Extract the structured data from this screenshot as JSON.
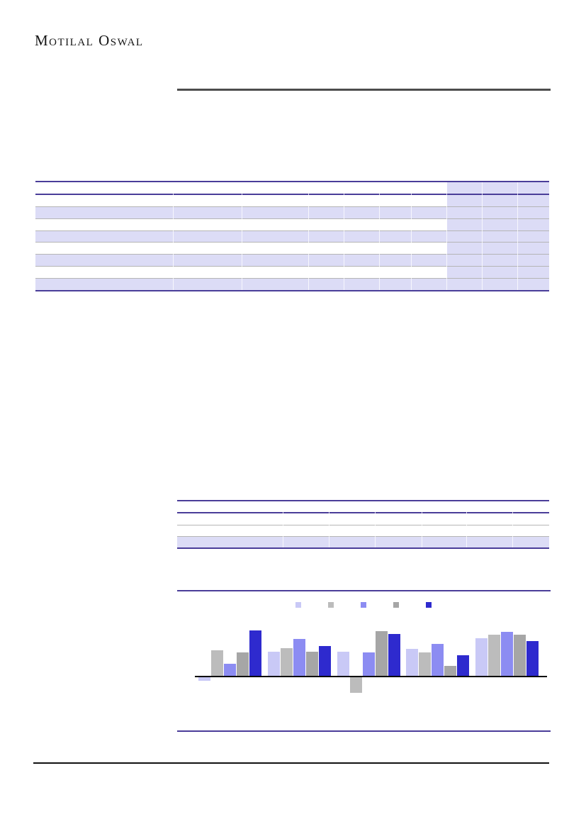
{
  "brand": {
    "logo_text": "Motilal Oswal"
  },
  "colors": {
    "accent_line": "#4a3d99",
    "row_fill": "#dcdcf6",
    "grey_line": "#b5b5b5",
    "header_rule": "#4d4d4d",
    "footer_line": "#111111",
    "axis": "#000000"
  },
  "table1": {
    "rows": [
      {
        "fill": "white",
        "bottom": "accent"
      },
      {
        "fill": "white",
        "bottom": "grey"
      },
      {
        "fill": "lavender",
        "bottom": "grey"
      },
      {
        "fill": "white",
        "bottom": "grey"
      },
      {
        "fill": "lavender",
        "bottom": "grey"
      },
      {
        "fill": "white",
        "bottom": "grey"
      },
      {
        "fill": "lavender",
        "bottom": "grey"
      },
      {
        "fill": "white",
        "bottom": "grey"
      },
      {
        "fill": "lavender",
        "bottom": "none"
      }
    ],
    "has_right_shaded_column": true,
    "dividers": [
      194,
      291,
      385,
      435,
      485,
      530,
      580,
      630,
      680
    ]
  },
  "table2": {
    "rows": [
      {
        "fill": "white",
        "bottom": "accent"
      },
      {
        "fill": "white",
        "bottom": "grey"
      },
      {
        "fill": "white",
        "bottom": "grey"
      },
      {
        "fill": "lavender",
        "bottom": "none"
      }
    ],
    "has_right_shaded_column": false,
    "dividers": [
      149,
      214,
      279,
      345,
      408,
      473
    ]
  },
  "chart_data": {
    "type": "bar",
    "title": "",
    "xlabel": "",
    "ylabel": "",
    "categories": [
      "",
      "",
      "",
      "",
      ""
    ],
    "units": "estimated relative units (no axis tick labels visible in image)",
    "ylim": [
      -25,
      70
    ],
    "grid": false,
    "legend_position": "top",
    "series": [
      {
        "name": "series-1",
        "color": "#c9c9f6",
        "values": [
          -5,
          34,
          34,
          38,
          53
        ]
      },
      {
        "name": "series-2",
        "color": "#bcbcbc",
        "values": [
          36,
          39,
          -22,
          33,
          58
        ]
      },
      {
        "name": "series-3",
        "color": "#8c8cf2",
        "values": [
          17,
          52,
          33,
          45,
          62
        ]
      },
      {
        "name": "series-4",
        "color": "#a6a6a6",
        "values": [
          33,
          34,
          63,
          14,
          58
        ]
      },
      {
        "name": "series-5",
        "color": "#2e2ace",
        "values": [
          64,
          42,
          59,
          29,
          49
        ]
      }
    ]
  }
}
